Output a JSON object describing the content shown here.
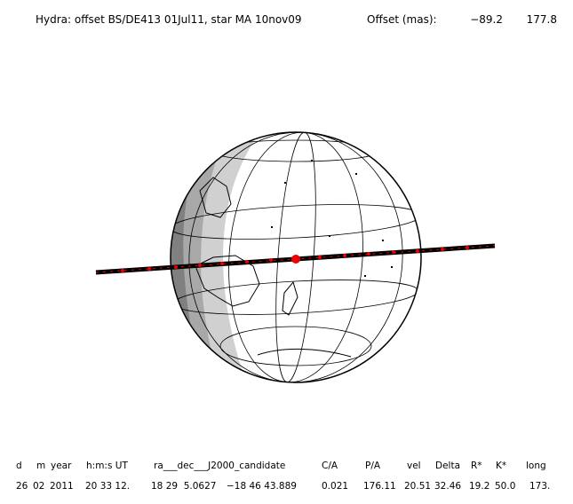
{
  "header": {
    "title": "Hydra: offset BS/DE413 01Jul11, star MA 10nov09",
    "offset_label": "Offset (mas):",
    "offset_x": "−89.2",
    "offset_y": "177.8"
  },
  "table": {
    "columns": [
      "d",
      "m",
      "year",
      "h:m:s UT",
      "ra___dec___J2000_candidate",
      "C/A",
      "P/A",
      "vel",
      "Delta",
      "R*",
      "K*",
      "long"
    ],
    "row": [
      "26",
      "02",
      "2011",
      "20 33 12.",
      "18 29  5.0627",
      "−18 46 43.889",
      "0.021",
      "176.11",
      "20.51",
      "32.46",
      "19.2",
      "50.0",
      "173."
    ]
  }
}
